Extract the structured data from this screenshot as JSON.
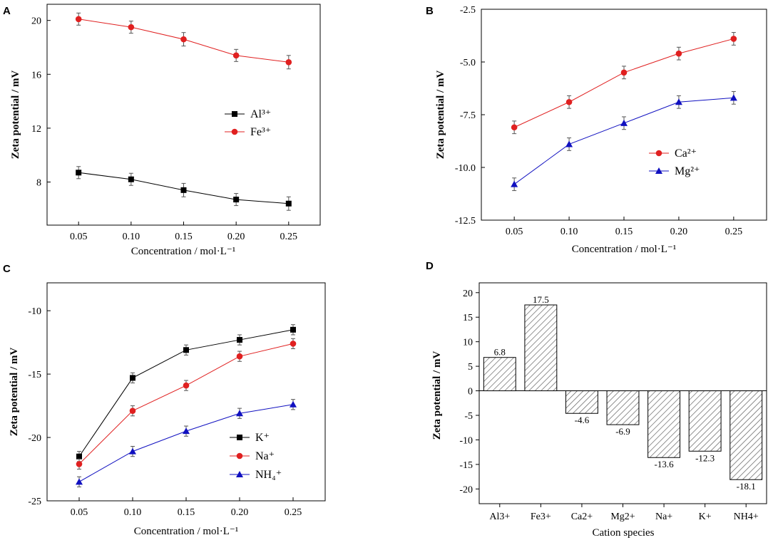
{
  "panels": [
    {
      "panel_label": "A",
      "chart_data": {
        "type": "line",
        "x": [
          0.05,
          0.1,
          0.15,
          0.2,
          0.25
        ],
        "x_tick_labels": [
          "0.05",
          "0.10",
          "0.15",
          "0.20",
          "0.25"
        ],
        "xlim": [
          0.02,
          0.28
        ],
        "ylim": [
          4.8,
          21.2
        ],
        "y_ticks": [
          8,
          12,
          16,
          20
        ],
        "y_tick_labels": [
          "8",
          "12",
          "16",
          "20"
        ],
        "xlabel": "Concentration / mol·L⁻¹",
        "ylabel": "Zeta potential / mV",
        "legend_position": "center-right",
        "series": [
          {
            "name": "Al³⁺",
            "ion": "Al",
            "charge": "3+",
            "marker": "square",
            "color": "#000000",
            "values": [
              8.7,
              8.2,
              7.4,
              6.7,
              6.4
            ],
            "errors": [
              0.45,
              0.45,
              0.5,
              0.45,
              0.5
            ]
          },
          {
            "name": "Fe³⁺",
            "ion": "Fe",
            "charge": "3+",
            "marker": "circle",
            "color": "#e02020",
            "values": [
              20.1,
              19.5,
              18.6,
              17.4,
              16.9
            ],
            "errors": [
              0.45,
              0.45,
              0.5,
              0.45,
              0.5
            ]
          }
        ]
      }
    },
    {
      "panel_label": "B",
      "chart_data": {
        "type": "line",
        "x": [
          0.05,
          0.1,
          0.15,
          0.2,
          0.25
        ],
        "x_tick_labels": [
          "0.05",
          "0.10",
          "0.15",
          "0.20",
          "0.25"
        ],
        "xlim": [
          0.02,
          0.28
        ],
        "ylim": [
          -12.5,
          -2.5
        ],
        "y_ticks": [
          -12.5,
          -10.0,
          -7.5,
          -5.0,
          -2.5
        ],
        "y_tick_labels": [
          "-12.5",
          "-10.0",
          "-7.5",
          "-5.0",
          "-2.5"
        ],
        "xlabel": "Concentration / mol·L⁻¹",
        "ylabel": "Zeta potential / mV",
        "legend_position": "lower-right",
        "series": [
          {
            "name": "Ca²⁺",
            "ion": "Ca",
            "charge": "2+",
            "marker": "circle",
            "color": "#e02020",
            "values": [
              -8.1,
              -6.9,
              -5.5,
              -4.6,
              -3.9
            ],
            "errors": [
              0.3,
              0.3,
              0.3,
              0.3,
              0.3
            ]
          },
          {
            "name": "Mg²⁺",
            "ion": "Mg",
            "charge": "2+",
            "marker": "triangle",
            "color": "#1010c0",
            "values": [
              -10.8,
              -8.9,
              -7.9,
              -6.9,
              -6.7
            ],
            "errors": [
              0.3,
              0.3,
              0.3,
              0.3,
              0.3
            ]
          }
        ]
      }
    },
    {
      "panel_label": "C",
      "chart_data": {
        "type": "line",
        "x": [
          0.05,
          0.1,
          0.15,
          0.2,
          0.25
        ],
        "x_tick_labels": [
          "0.05",
          "0.10",
          "0.15",
          "0.20",
          "0.25"
        ],
        "xlim": [
          0.02,
          0.28
        ],
        "ylim": [
          -25,
          -7.8
        ],
        "y_ticks": [
          -25,
          -20,
          -15,
          -10
        ],
        "y_tick_labels": [
          "-25",
          "-20",
          "-15",
          "-10"
        ],
        "xlabel": "Concentration / mol·L⁻¹",
        "ylabel": "Zeta potential / mV",
        "legend_position": "lower-right",
        "series": [
          {
            "name": "K⁺",
            "ion": "K",
            "charge": "+",
            "marker": "square",
            "color": "#000000",
            "values": [
              -21.5,
              -15.3,
              -13.1,
              -12.3,
              -11.5
            ],
            "errors": [
              0.4,
              0.4,
              0.4,
              0.4,
              0.4
            ]
          },
          {
            "name": "Na⁺",
            "ion": "Na",
            "charge": "+",
            "marker": "circle",
            "color": "#e02020",
            "values": [
              -22.1,
              -17.9,
              -15.9,
              -13.6,
              -12.6
            ],
            "errors": [
              0.4,
              0.4,
              0.4,
              0.4,
              0.4
            ]
          },
          {
            "name": "NH₄⁺",
            "ion": "NH",
            "sub": "4",
            "charge": "+",
            "marker": "triangle",
            "color": "#1010c0",
            "values": [
              -23.5,
              -21.1,
              -19.5,
              -18.1,
              -17.4
            ],
            "errors": [
              0.4,
              0.4,
              0.4,
              0.4,
              0.4
            ]
          }
        ]
      }
    },
    {
      "panel_label": "D",
      "chart_data": {
        "type": "bar",
        "categories": [
          "Al3+",
          "Fe3+",
          "Ca2+",
          "Mg2+",
          "Na+",
          "K+",
          "NH4+"
        ],
        "values": [
          6.8,
          17.5,
          -4.6,
          -6.9,
          -13.6,
          -12.3,
          -18.1
        ],
        "data_labels": [
          "6.8",
          "17.5",
          "-4.6",
          "-6.9",
          "-13.6",
          "-12.3",
          "-18.1"
        ],
        "ylim": [
          -23,
          22
        ],
        "y_ticks": [
          -20,
          -15,
          -10,
          -5,
          0,
          5,
          10,
          15,
          20
        ],
        "y_tick_labels": [
          "-20",
          "-15",
          "-10",
          "-5",
          "0",
          "5",
          "10",
          "15",
          "20"
        ],
        "xlabel": "Cation species",
        "ylabel": "Zeta potential / mV",
        "bar_fill": "hatched"
      }
    }
  ]
}
